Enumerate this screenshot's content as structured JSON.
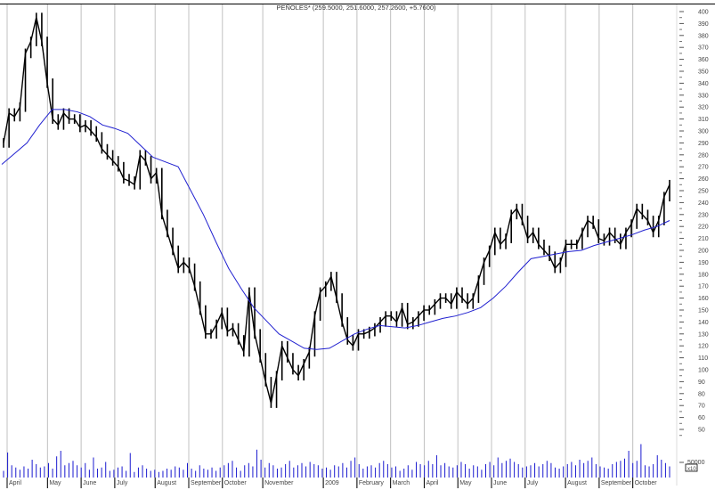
{
  "chart_data": {
    "type": "line",
    "title": "PEÑOLES* (259.5000, 251.6000, 257.2600, +5.7600)",
    "xlabel": "",
    "ylabel": "",
    "ylim": [
      50,
      400
    ],
    "y_ticks": [
      50,
      60,
      70,
      80,
      90,
      100,
      110,
      120,
      130,
      140,
      150,
      160,
      170,
      180,
      190,
      200,
      210,
      220,
      230,
      240,
      250,
      260,
      270,
      280,
      290,
      300,
      310,
      320,
      330,
      340,
      350,
      360,
      370,
      380,
      390,
      400
    ],
    "x_tick_labels": [
      "April",
      "May",
      "June",
      "July",
      "August",
      "September",
      "October",
      "November",
      "2009",
      "February",
      "March",
      "April",
      "May",
      "June",
      "July",
      "August",
      "September",
      "October"
    ],
    "grid": "vertical at month starts",
    "legend": "none",
    "colors": {
      "price": "#000000",
      "moving_average": "#2020d0",
      "volume": "#1a1ad0",
      "grid": "#c0c0c0"
    },
    "price_close": [
      290,
      315,
      312,
      320,
      365,
      375,
      395,
      375,
      340,
      310,
      305,
      315,
      310,
      310,
      303,
      305,
      300,
      295,
      285,
      280,
      275,
      270,
      260,
      258,
      255,
      280,
      275,
      260,
      265,
      230,
      215,
      200,
      185,
      190,
      185,
      170,
      150,
      130,
      130,
      138,
      148,
      132,
      135,
      125,
      115,
      165,
      130,
      110,
      90,
      72,
      95,
      120,
      110,
      100,
      95,
      105,
      115,
      145,
      165,
      170,
      178,
      160,
      140,
      125,
      120,
      130,
      130,
      132,
      135,
      140,
      145,
      145,
      140,
      152,
      138,
      140,
      145,
      150,
      150,
      155,
      160,
      160,
      155,
      165,
      160,
      155,
      160,
      175,
      190,
      200,
      215,
      205,
      210,
      230,
      235,
      225,
      210,
      215,
      205,
      200,
      195,
      185,
      190,
      205,
      205,
      205,
      215,
      225,
      222,
      210,
      208,
      215,
      210,
      205,
      215,
      222,
      235,
      230,
      225,
      215,
      225,
      245,
      255
    ],
    "moving_average": [
      272,
      281,
      290,
      305,
      318,
      318,
      316,
      312,
      305,
      302,
      298,
      288,
      278,
      274,
      270,
      250,
      230,
      207,
      185,
      168,
      152,
      141,
      130,
      124,
      118,
      117,
      118,
      124,
      130,
      134,
      137,
      136,
      135,
      137,
      140,
      143,
      145,
      148,
      152,
      160,
      170,
      182,
      193,
      195,
      197,
      199,
      200,
      204,
      207,
      210,
      213,
      217,
      220,
      225
    ],
    "volume_axis": {
      "label": "50000",
      "multiplier": "x10",
      "max": 80000
    },
    "volume": [
      12,
      45,
      22,
      18,
      14,
      20,
      16,
      32,
      24,
      18,
      20,
      26,
      16,
      38,
      48,
      22,
      26,
      30,
      22,
      18,
      26,
      14,
      36,
      16,
      18,
      28,
      12,
      14,
      18,
      20,
      12,
      44,
      10,
      18,
      22,
      16,
      12,
      14,
      10,
      12,
      16,
      14,
      20,
      18,
      14,
      26,
      16,
      12,
      22,
      16,
      14,
      18,
      12,
      18,
      22,
      26,
      30,
      18,
      12,
      22,
      26,
      20,
      50,
      32,
      18,
      26,
      22,
      16,
      18,
      24,
      30,
      18,
      22,
      26,
      20,
      28,
      24,
      22,
      16,
      18,
      14,
      22,
      20,
      26,
      18,
      30,
      36,
      24,
      16,
      20,
      22,
      18,
      26,
      30,
      24,
      18,
      20,
      12,
      16,
      22,
      14,
      28,
      24,
      22,
      30,
      24,
      40,
      22,
      26,
      20,
      18,
      22,
      28,
      24,
      16,
      22,
      20,
      14,
      24,
      28,
      22,
      36,
      26,
      30,
      34,
      28,
      24,
      18,
      20,
      22,
      26,
      20,
      24,
      30,
      26,
      18,
      16,
      20,
      24,
      28,
      22,
      32,
      26,
      30,
      36,
      24,
      20,
      18,
      16,
      24,
      28,
      30,
      34,
      48,
      26,
      30,
      60,
      22,
      20,
      24,
      40,
      32,
      26,
      20
    ],
    "month_positions": [
      0,
      6,
      11,
      16,
      22,
      27,
      32,
      38,
      47,
      52,
      57,
      62,
      67,
      72,
      77,
      83,
      88,
      93
    ]
  }
}
